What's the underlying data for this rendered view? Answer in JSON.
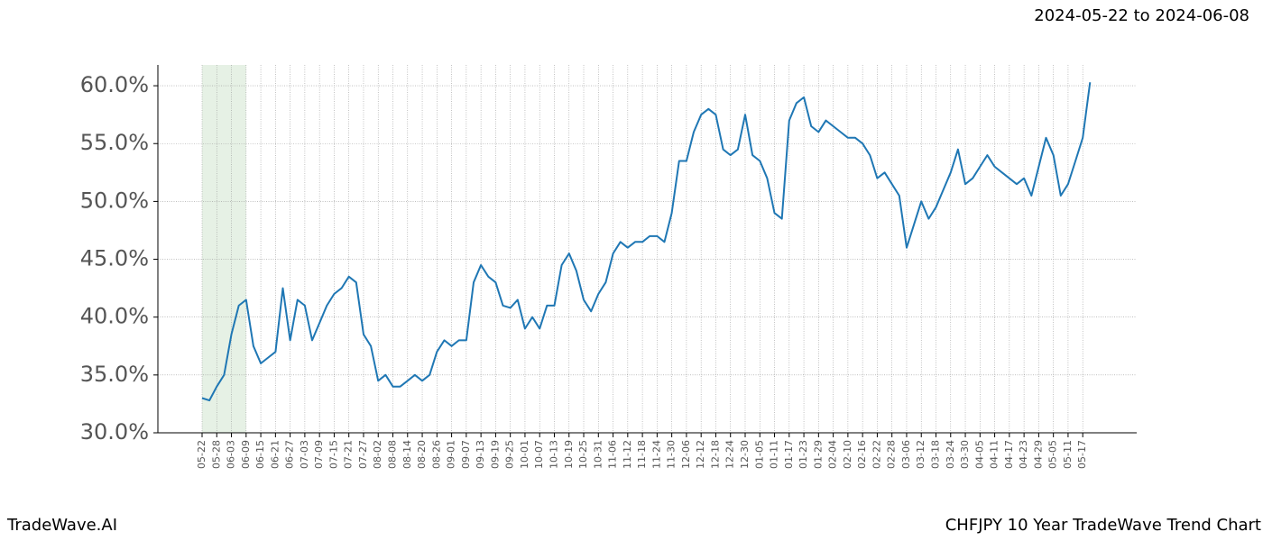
{
  "chart_data": {
    "type": "line",
    "title": "2024-05-22 to 2024-06-08",
    "footer_left": "TradeWave.AI",
    "footer_right": "CHFJPY 10 Year TradeWave Trend Chart",
    "categories": [
      "05-22",
      null,
      "05-28",
      null,
      "06-03",
      null,
      "06-09",
      null,
      "06-15",
      null,
      "06-21",
      null,
      "06-27",
      null,
      "07-03",
      null,
      "07-09",
      null,
      "07-15",
      null,
      "07-21",
      null,
      "07-27",
      null,
      "08-02",
      null,
      "08-08",
      null,
      "08-14",
      null,
      "08-20",
      null,
      "08-26",
      null,
      "09-01",
      null,
      "09-07",
      null,
      "09-13",
      null,
      "09-19",
      null,
      "09-25",
      null,
      "10-01",
      null,
      "10-07",
      null,
      "10-13",
      null,
      "10-19",
      null,
      "10-25",
      null,
      "10-31",
      null,
      "11-06",
      null,
      "11-12",
      null,
      "11-18",
      null,
      "11-24",
      null,
      "11-30",
      null,
      "12-06",
      null,
      "12-12",
      null,
      "12-18",
      null,
      "12-24",
      null,
      "12-30",
      null,
      "01-05",
      null,
      "01-11",
      null,
      "01-17",
      null,
      "01-23",
      null,
      "01-29",
      null,
      "02-04",
      null,
      "02-10",
      null,
      "02-16",
      null,
      "02-22",
      null,
      "02-28",
      null,
      "03-06",
      null,
      "03-12",
      null,
      "03-18",
      null,
      "03-24",
      null,
      "03-30",
      null,
      "04-05",
      null,
      "04-11",
      null,
      "04-17",
      null,
      "04-23",
      null,
      "04-29",
      null,
      "05-05",
      null,
      "05-11",
      null,
      "05-17",
      null
    ],
    "series": [
      {
        "color": "#1f77b4",
        "values": [
          33.0,
          32.8,
          34.0,
          35.0,
          38.5,
          41.0,
          41.5,
          37.5,
          36.0,
          36.5,
          37.0,
          42.5,
          38.0,
          41.5,
          41.0,
          38.0,
          39.5,
          41.0,
          42.0,
          42.5,
          43.5,
          43.0,
          38.5,
          37.5,
          34.5,
          35.0,
          34.0,
          34.0,
          34.5,
          35.0,
          34.5,
          35.0,
          37.0,
          38.0,
          37.5,
          38.0,
          38.0,
          43.0,
          44.5,
          43.5,
          43.0,
          41.0,
          40.8,
          41.5,
          39.0,
          40.0,
          39.0,
          41.0,
          41.0,
          44.5,
          45.5,
          44.0,
          41.5,
          40.5,
          42.0,
          43.0,
          45.5,
          46.5,
          46.0,
          46.5,
          46.5,
          47.0,
          47.0,
          46.5,
          49.0,
          53.5,
          53.5,
          56.0,
          57.5,
          58.0,
          57.5,
          54.5,
          54.0,
          54.5,
          57.5,
          54.0,
          53.5,
          52.0,
          49.0,
          48.5,
          57.0,
          58.5,
          59.0,
          56.5,
          56.0,
          57.0,
          56.5,
          56.0,
          55.5,
          55.5,
          55.0,
          54.0,
          52.0,
          52.5,
          51.5,
          50.5,
          46.0,
          48.0,
          50.0,
          48.5,
          49.5,
          51.0,
          52.5,
          54.5,
          51.5,
          52.0,
          53.0,
          54.0,
          53.0,
          52.5,
          52.0,
          51.5,
          52.0,
          50.5,
          53.0,
          55.5,
          54.0,
          50.5,
          51.5,
          53.5,
          55.5,
          60.3
        ]
      }
    ],
    "ylim": [
      30,
      61.8
    ],
    "yticks": [
      {
        "value": 30,
        "label": "30.0%"
      },
      {
        "value": 35,
        "label": "35.0%"
      },
      {
        "value": 40,
        "label": "40.0%"
      },
      {
        "value": 45,
        "label": "45.0%"
      },
      {
        "value": 50,
        "label": "50.0%"
      },
      {
        "value": 55,
        "label": "55.0%"
      },
      {
        "value": 60,
        "label": "60.0%"
      }
    ],
    "highlight_range": [
      0,
      6
    ],
    "highlight_color": "#d5e8d4",
    "grid": true
  }
}
